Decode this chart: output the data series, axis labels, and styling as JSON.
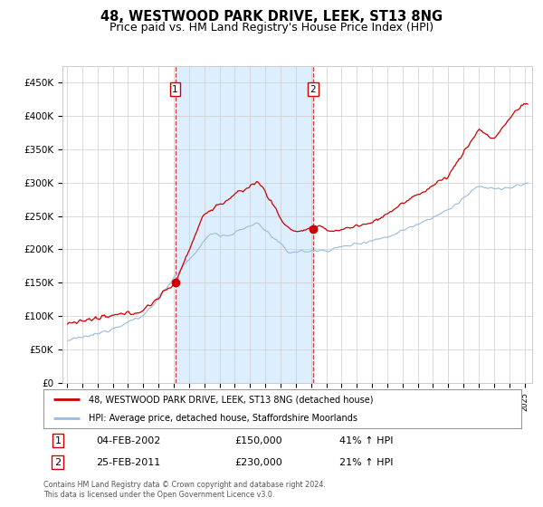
{
  "title": "48, WESTWOOD PARK DRIVE, LEEK, ST13 8NG",
  "subtitle": "Price paid vs. HM Land Registry's House Price Index (HPI)",
  "title_fontsize": 10.5,
  "subtitle_fontsize": 9,
  "ylabel_ticks": [
    "£0",
    "£50K",
    "£100K",
    "£150K",
    "£200K",
    "£250K",
    "£300K",
    "£350K",
    "£400K",
    "£450K"
  ],
  "ytick_values": [
    0,
    50000,
    100000,
    150000,
    200000,
    250000,
    300000,
    350000,
    400000,
    450000
  ],
  "ylim": [
    0,
    475000
  ],
  "background_color": "#ffffff",
  "plot_bg_color": "#ffffff",
  "grid_color": "#cccccc",
  "shaded_color": "#ddeeff",
  "red_line_color": "#cc0000",
  "blue_line_color": "#99bbdd",
  "purchase1_price": 150000,
  "purchase1_year": 2002.09,
  "purchase2_price": 230000,
  "purchase2_year": 2011.13,
  "legend1_text": "48, WESTWOOD PARK DRIVE, LEEK, ST13 8NG (detached house)",
  "legend2_text": "HPI: Average price, detached house, Staffordshire Moorlands",
  "row1_num": "1",
  "row1_date": "04-FEB-2002",
  "row1_price": "£150,000",
  "row1_hpi": "41% ↑ HPI",
  "row2_num": "2",
  "row2_date": "25-FEB-2011",
  "row2_price": "£230,000",
  "row2_hpi": "21% ↑ HPI",
  "footer1": "Contains HM Land Registry data © Crown copyright and database right 2024.",
  "footer2": "This data is licensed under the Open Government Licence v3.0."
}
